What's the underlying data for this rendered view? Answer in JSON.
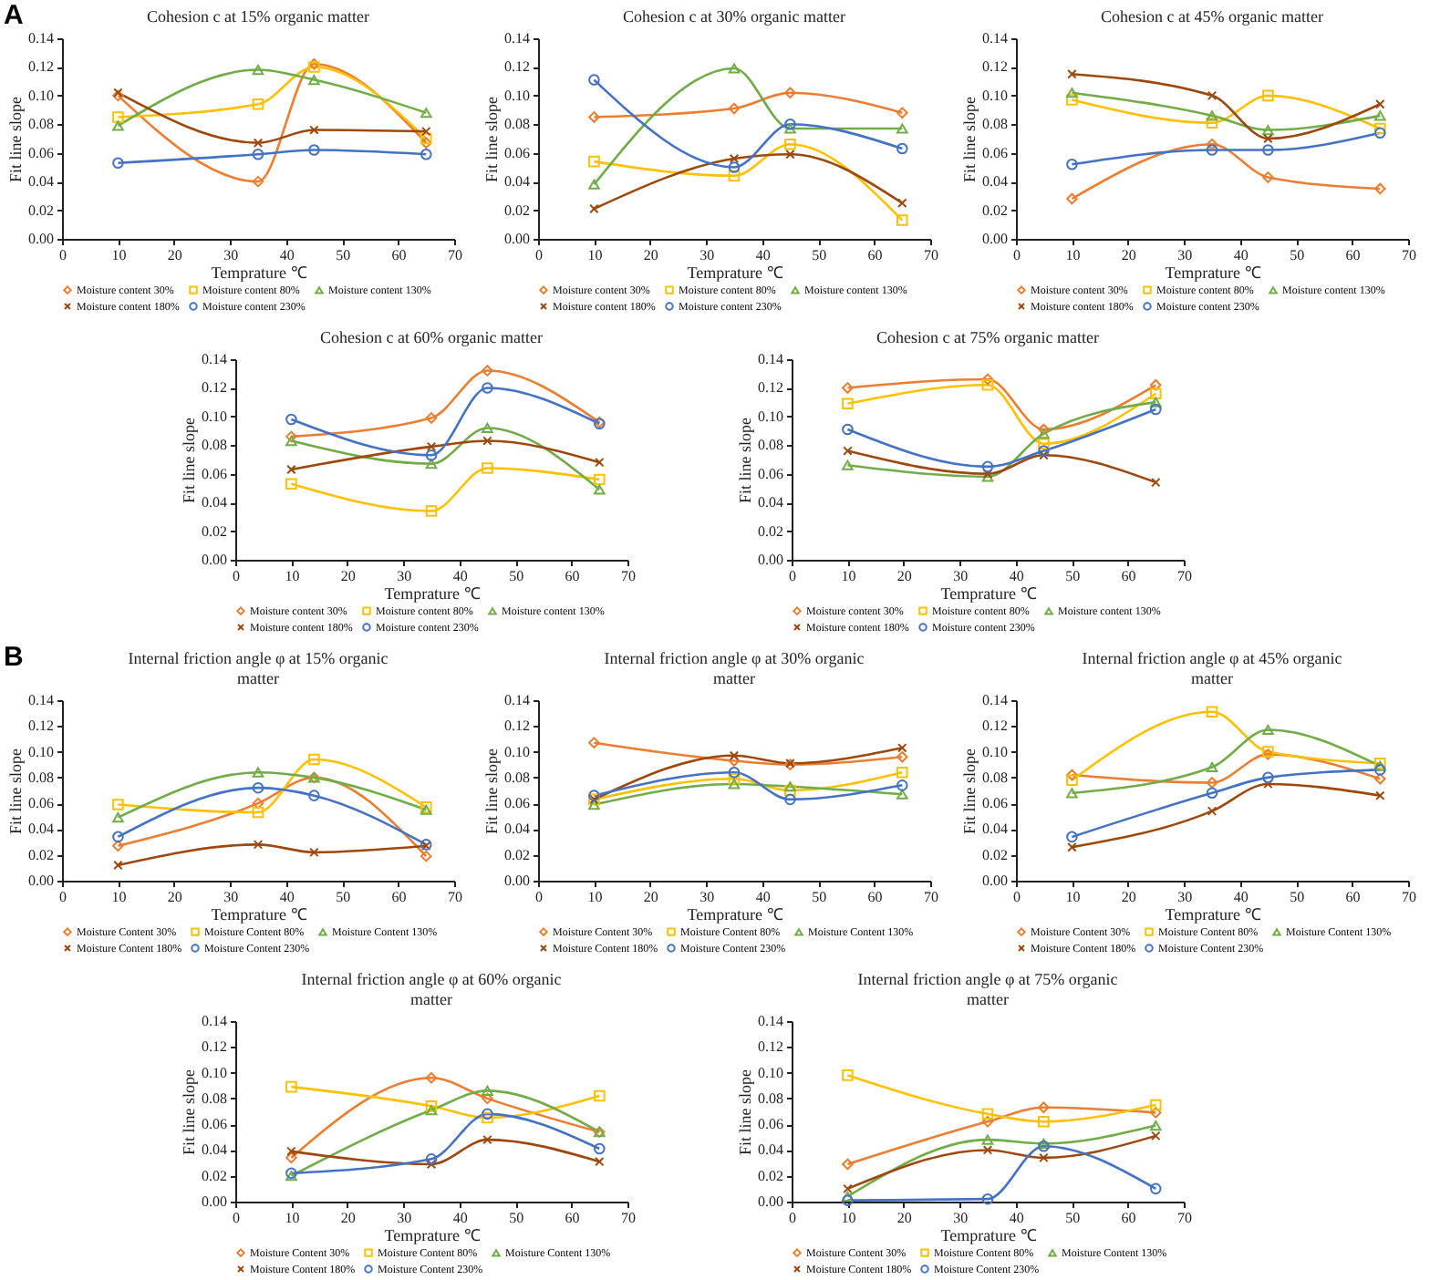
{
  "chart_data": [
    {
      "type": "line",
      "title": "Cohesion c at 15% organic matter",
      "xlabel": "Temprature ℃",
      "ylabel": "Fit line slope",
      "annotations": [
        "A"
      ],
      "legend": "bottom",
      "x": [
        10,
        35,
        45,
        65
      ],
      "xlim": [
        0,
        70
      ],
      "xticks": [
        0,
        10,
        20,
        30,
        40,
        50,
        60,
        70
      ],
      "ylim": [
        0,
        0.14
      ],
      "yticks": [
        {
          "value": 0,
          "label": "0.00"
        },
        {
          "value": 0.02,
          "label": "0.02"
        },
        {
          "value": 0.04,
          "label": "0.04"
        },
        {
          "value": 0.06,
          "label": "0.06"
        },
        {
          "value": 0.08,
          "label": "0.08"
        },
        {
          "value": 0.1,
          "label": "0.10"
        },
        {
          "value": 0.12,
          "label": "0.12"
        },
        {
          "value": 0.14,
          "label": "0.14"
        }
      ],
      "series": [
        {
          "name": "Moisture content 30%",
          "color": "#ed7d31",
          "marker": "diamond",
          "values": [
            0.1,
            0.04,
            0.122,
            0.067
          ]
        },
        {
          "name": "Moisture content 80%",
          "color": "#ffc000",
          "marker": "square",
          "values": [
            0.085,
            0.094,
            0.12,
            0.07
          ]
        },
        {
          "name": "Moisture content 130%",
          "color": "#70ad47",
          "marker": "triangle",
          "values": [
            0.079,
            0.118,
            0.111,
            0.088
          ]
        },
        {
          "name": "Moisture content 180%",
          "color": "#9e480e",
          "marker": "cross",
          "values": [
            0.102,
            0.067,
            0.076,
            0.075
          ]
        },
        {
          "name": "Moisture content 230%",
          "color": "#4472c4",
          "marker": "circle",
          "values": [
            0.053,
            0.059,
            0.062,
            0.059
          ]
        }
      ]
    },
    {
      "type": "line",
      "title": "Cohesion c at 30% organic matter",
      "xlabel": "Temprature ℃",
      "ylabel": "Fit line slope",
      "legend": "bottom",
      "x": [
        10,
        35,
        45,
        65
      ],
      "xlim": [
        0,
        70
      ],
      "xticks": [
        0,
        10,
        20,
        30,
        40,
        50,
        60,
        70
      ],
      "ylim": [
        0,
        0.14
      ],
      "yticks": [
        {
          "value": 0,
          "label": "0.00"
        },
        {
          "value": 0.02,
          "label": "0.02"
        },
        {
          "value": 0.04,
          "label": "0.04"
        },
        {
          "value": 0.06,
          "label": "0.06"
        },
        {
          "value": 0.08,
          "label": "0.08"
        },
        {
          "value": 0.1,
          "label": "0.10"
        },
        {
          "value": 0.12,
          "label": "0.12"
        },
        {
          "value": 0.14,
          "label": "0.14"
        }
      ],
      "series": [
        {
          "name": "Moisture content 30%",
          "color": "#ed7d31",
          "marker": "diamond",
          "values": [
            0.085,
            0.091,
            0.102,
            0.088
          ]
        },
        {
          "name": "Moisture content 80%",
          "color": "#ffc000",
          "marker": "square",
          "values": [
            0.054,
            0.044,
            0.066,
            0.013
          ]
        },
        {
          "name": "Moisture content 130%",
          "color": "#70ad47",
          "marker": "triangle",
          "values": [
            0.038,
            0.119,
            0.077,
            0.077
          ]
        },
        {
          "name": "Moisture content 180%",
          "color": "#9e480e",
          "marker": "cross",
          "values": [
            0.021,
            0.056,
            0.059,
            0.025
          ]
        },
        {
          "name": "Moisture content 230%",
          "color": "#4472c4",
          "marker": "circle",
          "values": [
            0.111,
            0.05,
            0.08,
            0.063
          ]
        }
      ]
    },
    {
      "type": "line",
      "title": "Cohesion c at 45% organic matter",
      "xlabel": "Temprature ℃",
      "ylabel": "Fit line slope",
      "legend": "bottom",
      "x": [
        10,
        35,
        45,
        65
      ],
      "xlim": [
        0,
        70
      ],
      "xticks": [
        0,
        10,
        20,
        30,
        40,
        50,
        60,
        70
      ],
      "ylim": [
        0,
        0.14
      ],
      "yticks": [
        {
          "value": 0,
          "label": "0.00"
        },
        {
          "value": 0.02,
          "label": "0.02"
        },
        {
          "value": 0.04,
          "label": "0.04"
        },
        {
          "value": 0.06,
          "label": "0.06"
        },
        {
          "value": 0.08,
          "label": "0.08"
        },
        {
          "value": 0.1,
          "label": "0.10"
        },
        {
          "value": 0.12,
          "label": "0.12"
        },
        {
          "value": 0.14,
          "label": "0.14"
        }
      ],
      "series": [
        {
          "name": "Moisture content 30%",
          "color": "#ed7d31",
          "marker": "diamond",
          "values": [
            0.028,
            0.066,
            0.043,
            0.035
          ]
        },
        {
          "name": "Moisture content 80%",
          "color": "#ffc000",
          "marker": "square",
          "values": [
            0.097,
            0.081,
            0.1,
            0.077
          ]
        },
        {
          "name": "Moisture content 130%",
          "color": "#70ad47",
          "marker": "triangle",
          "values": [
            0.102,
            0.086,
            0.076,
            0.086
          ]
        },
        {
          "name": "Moisture content 180%",
          "color": "#9e480e",
          "marker": "cross",
          "values": [
            0.115,
            0.1,
            0.07,
            0.094
          ]
        },
        {
          "name": "Moisture content 230%",
          "color": "#4472c4",
          "marker": "circle",
          "values": [
            0.052,
            0.062,
            0.062,
            0.074
          ]
        }
      ]
    },
    {
      "type": "line",
      "title": "Cohesion c at 60% organic matter",
      "xlabel": "Temprature ℃",
      "ylabel": "Fit line slope",
      "legend": "bottom",
      "x": [
        10,
        35,
        45,
        65
      ],
      "xlim": [
        0,
        70
      ],
      "xticks": [
        0,
        10,
        20,
        30,
        40,
        50,
        60,
        70
      ],
      "ylim": [
        0,
        0.14
      ],
      "yticks": [
        {
          "value": 0,
          "label": "0.00"
        },
        {
          "value": 0.02,
          "label": "0.02"
        },
        {
          "value": 0.04,
          "label": "0.04"
        },
        {
          "value": 0.06,
          "label": "0.06"
        },
        {
          "value": 0.08,
          "label": "0.08"
        },
        {
          "value": 0.1,
          "label": "0.10"
        },
        {
          "value": 0.12,
          "label": "0.12"
        },
        {
          "value": 0.14,
          "label": "0.14"
        }
      ],
      "series": [
        {
          "name": "Moisture content 30%",
          "color": "#ed7d31",
          "marker": "diamond",
          "values": [
            0.086,
            0.099,
            0.132,
            0.096
          ]
        },
        {
          "name": "Moisture content 80%",
          "color": "#ffc000",
          "marker": "square",
          "values": [
            0.053,
            0.034,
            0.064,
            0.056
          ]
        },
        {
          "name": "Moisture content 130%",
          "color": "#70ad47",
          "marker": "triangle",
          "values": [
            0.083,
            0.067,
            0.092,
            0.049
          ]
        },
        {
          "name": "Moisture content 180%",
          "color": "#9e480e",
          "marker": "cross",
          "values": [
            0.063,
            0.079,
            0.083,
            0.068
          ]
        },
        {
          "name": "Moisture content 230%",
          "color": "#4472c4",
          "marker": "circle",
          "values": [
            0.098,
            0.073,
            0.12,
            0.095
          ]
        }
      ]
    },
    {
      "type": "line",
      "title": "Cohesion c at 75% organic matter",
      "xlabel": "Temprature ℃",
      "ylabel": "Fit line slope",
      "legend": "bottom",
      "x": [
        10,
        35,
        45,
        65
      ],
      "xlim": [
        0,
        70
      ],
      "xticks": [
        0,
        10,
        20,
        30,
        40,
        50,
        60,
        70
      ],
      "ylim": [
        0,
        0.14
      ],
      "yticks": [
        {
          "value": 0,
          "label": "0.00"
        },
        {
          "value": 0.02,
          "label": "0.02"
        },
        {
          "value": 0.04,
          "label": "0.04"
        },
        {
          "value": 0.06,
          "label": "0.06"
        },
        {
          "value": 0.08,
          "label": "0.08"
        },
        {
          "value": 0.1,
          "label": "0.10"
        },
        {
          "value": 0.12,
          "label": "0.12"
        },
        {
          "value": 0.14,
          "label": "0.14"
        }
      ],
      "series": [
        {
          "name": "Moisture content 30%",
          "color": "#ed7d31",
          "marker": "diamond",
          "values": [
            0.12,
            0.126,
            0.091,
            0.122
          ]
        },
        {
          "name": "Moisture content 80%",
          "color": "#ffc000",
          "marker": "square",
          "values": [
            0.109,
            0.122,
            0.081,
            0.116
          ]
        },
        {
          "name": "Moisture content 130%",
          "color": "#70ad47",
          "marker": "triangle",
          "values": [
            0.066,
            0.058,
            0.088,
            0.11
          ]
        },
        {
          "name": "Moisture content 180%",
          "color": "#9e480e",
          "marker": "cross",
          "values": [
            0.076,
            0.06,
            0.073,
            0.054
          ]
        },
        {
          "name": "Moisture content 230%",
          "color": "#4472c4",
          "marker": "circle",
          "values": [
            0.091,
            0.065,
            0.076,
            0.105
          ]
        }
      ]
    },
    {
      "type": "line",
      "title": "Internal friction angle φ at 15% organic matter",
      "xlabel": "Temprature ℃",
      "ylabel": "Fit line slope",
      "annotations": [
        "B"
      ],
      "legend": "bottom",
      "x": [
        10,
        35,
        45,
        65
      ],
      "xlim": [
        0,
        70
      ],
      "xticks": [
        0,
        10,
        20,
        30,
        40,
        50,
        60,
        70
      ],
      "ylim": [
        0,
        0.14
      ],
      "yticks": [
        {
          "value": 0,
          "label": "0.00"
        },
        {
          "value": 0.02,
          "label": "0.02"
        },
        {
          "value": 0.04,
          "label": "0.04"
        },
        {
          "value": 0.06,
          "label": "0.06"
        },
        {
          "value": 0.08,
          "label": "0.08"
        },
        {
          "value": 0.1,
          "label": "0.10"
        },
        {
          "value": 0.12,
          "label": "0.12"
        },
        {
          "value": 0.14,
          "label": "0.14"
        }
      ],
      "series": [
        {
          "name": "Moisture Content 30%",
          "color": "#ed7d31",
          "marker": "diamond",
          "values": [
            0.027,
            0.06,
            0.08,
            0.019
          ]
        },
        {
          "name": "Moisture Content 80%",
          "color": "#ffc000",
          "marker": "square",
          "values": [
            0.059,
            0.053,
            0.094,
            0.057
          ]
        },
        {
          "name": "Moisture Content 130%",
          "color": "#70ad47",
          "marker": "triangle",
          "values": [
            0.049,
            0.084,
            0.08,
            0.055
          ]
        },
        {
          "name": "Moisture Content 180%",
          "color": "#9e480e",
          "marker": "cross",
          "values": [
            0.012,
            0.028,
            0.022,
            0.027
          ]
        },
        {
          "name": "Moisture Content 230%",
          "color": "#4472c4",
          "marker": "circle",
          "values": [
            0.034,
            0.072,
            0.066,
            0.028
          ]
        }
      ]
    },
    {
      "type": "line",
      "title": "Internal friction angle φ at 30% organic matter",
      "xlabel": "Temprature ℃",
      "ylabel": "Fit line slope",
      "legend": "bottom",
      "x": [
        10,
        35,
        45,
        65
      ],
      "xlim": [
        0,
        70
      ],
      "xticks": [
        0,
        10,
        20,
        30,
        40,
        50,
        60,
        70
      ],
      "ylim": [
        0,
        0.14
      ],
      "yticks": [
        {
          "value": 0,
          "label": "0.00"
        },
        {
          "value": 0.02,
          "label": "0.02"
        },
        {
          "value": 0.04,
          "label": "0.04"
        },
        {
          "value": 0.06,
          "label": "0.06"
        },
        {
          "value": 0.08,
          "label": "0.08"
        },
        {
          "value": 0.1,
          "label": "0.10"
        },
        {
          "value": 0.12,
          "label": "0.12"
        },
        {
          "value": 0.14,
          "label": "0.14"
        }
      ],
      "series": [
        {
          "name": "Moisture Content 30%",
          "color": "#ed7d31",
          "marker": "diamond",
          "values": [
            0.107,
            0.093,
            0.09,
            0.096
          ]
        },
        {
          "name": "Moisture Content 80%",
          "color": "#ffc000",
          "marker": "square",
          "values": [
            0.063,
            0.079,
            0.07,
            0.084
          ]
        },
        {
          "name": "Moisture Content 130%",
          "color": "#70ad47",
          "marker": "triangle",
          "values": [
            0.059,
            0.075,
            0.073,
            0.067
          ]
        },
        {
          "name": "Moisture Content 180%",
          "color": "#9e480e",
          "marker": "cross",
          "values": [
            0.063,
            0.097,
            0.091,
            0.103
          ]
        },
        {
          "name": "Moisture Content 230%",
          "color": "#4472c4",
          "marker": "circle",
          "values": [
            0.066,
            0.084,
            0.063,
            0.074
          ]
        }
      ]
    },
    {
      "type": "line",
      "title": "Internal friction angle φ at 45% organic matter",
      "xlabel": "Temprature ℃",
      "ylabel": "Fit line slope",
      "legend": "bottom",
      "x": [
        10,
        35,
        45,
        65
      ],
      "xlim": [
        0,
        70
      ],
      "xticks": [
        0,
        10,
        20,
        30,
        40,
        50,
        60,
        70
      ],
      "ylim": [
        0,
        0.14
      ],
      "yticks": [
        {
          "value": 0,
          "label": "0.00"
        },
        {
          "value": 0.02,
          "label": "0.02"
        },
        {
          "value": 0.04,
          "label": "0.04"
        },
        {
          "value": 0.06,
          "label": "0.06"
        },
        {
          "value": 0.08,
          "label": "0.08"
        },
        {
          "value": 0.1,
          "label": "0.10"
        },
        {
          "value": 0.12,
          "label": "0.12"
        },
        {
          "value": 0.14,
          "label": "0.14"
        }
      ],
      "series": [
        {
          "name": "Moisture Content 30%",
          "color": "#ed7d31",
          "marker": "diamond",
          "values": [
            0.082,
            0.076,
            0.098,
            0.079
          ]
        },
        {
          "name": "Moisture Content 80%",
          "color": "#ffc000",
          "marker": "square",
          "values": [
            0.078,
            0.131,
            0.1,
            0.091
          ]
        },
        {
          "name": "Moisture Content 130%",
          "color": "#70ad47",
          "marker": "triangle",
          "values": [
            0.068,
            0.088,
            0.117,
            0.089
          ]
        },
        {
          "name": "Moisture Content 180%",
          "color": "#9e480e",
          "marker": "cross",
          "values": [
            0.026,
            0.054,
            0.075,
            0.066
          ]
        },
        {
          "name": "Moisture Content 230%",
          "color": "#4472c4",
          "marker": "circle",
          "values": [
            0.034,
            0.068,
            0.08,
            0.086
          ]
        }
      ]
    },
    {
      "type": "line",
      "title": "Internal friction angle φ at 60% organic matter",
      "xlabel": "Temprature ℃",
      "ylabel": "Fit line slope",
      "legend": "bottom",
      "x": [
        10,
        35,
        45,
        65
      ],
      "xlim": [
        0,
        70
      ],
      "xticks": [
        0,
        10,
        20,
        30,
        40,
        50,
        60,
        70
      ],
      "ylim": [
        0,
        0.14
      ],
      "yticks": [
        {
          "value": 0,
          "label": "0.00"
        },
        {
          "value": 0.02,
          "label": "0.02"
        },
        {
          "value": 0.04,
          "label": "0.04"
        },
        {
          "value": 0.06,
          "label": "0.06"
        },
        {
          "value": 0.08,
          "label": "0.08"
        },
        {
          "value": 0.1,
          "label": "0.10"
        },
        {
          "value": 0.12,
          "label": "0.12"
        },
        {
          "value": 0.14,
          "label": "0.14"
        }
      ],
      "series": [
        {
          "name": "Moisture Content 30%",
          "color": "#ed7d31",
          "marker": "diamond",
          "values": [
            0.034,
            0.096,
            0.08,
            0.054
          ]
        },
        {
          "name": "Moisture Content 80%",
          "color": "#ffc000",
          "marker": "square",
          "values": [
            0.089,
            0.074,
            0.065,
            0.082
          ]
        },
        {
          "name": "Moisture Content 130%",
          "color": "#70ad47",
          "marker": "triangle",
          "values": [
            0.02,
            0.071,
            0.086,
            0.054
          ]
        },
        {
          "name": "Moisture Content 180%",
          "color": "#9e480e",
          "marker": "cross",
          "values": [
            0.039,
            0.029,
            0.048,
            0.031
          ]
        },
        {
          "name": "Moisture Content 230%",
          "color": "#4472c4",
          "marker": "circle",
          "values": [
            0.022,
            0.033,
            0.068,
            0.041
          ]
        }
      ]
    },
    {
      "type": "line",
      "title": "Internal friction angle φ at 75% organic matter",
      "xlabel": "Temprature ℃",
      "ylabel": "Fit line slope",
      "legend": "bottom",
      "x": [
        10,
        35,
        45,
        65
      ],
      "xlim": [
        0,
        70
      ],
      "xticks": [
        0,
        10,
        20,
        30,
        40,
        50,
        60,
        70
      ],
      "ylim": [
        0,
        0.14
      ],
      "yticks": [
        {
          "value": 0,
          "label": "0.00"
        },
        {
          "value": 0.02,
          "label": "0.02"
        },
        {
          "value": 0.04,
          "label": "0.04"
        },
        {
          "value": 0.06,
          "label": "0.06"
        },
        {
          "value": 0.08,
          "label": "0.08"
        },
        {
          "value": 0.1,
          "label": "0.10"
        },
        {
          "value": 0.12,
          "label": "0.12"
        },
        {
          "value": 0.14,
          "label": "0.14"
        }
      ],
      "series": [
        {
          "name": "Moisture Content 30%",
          "color": "#ed7d31",
          "marker": "diamond",
          "values": [
            0.029,
            0.062,
            0.073,
            0.069
          ]
        },
        {
          "name": "Moisture Content 80%",
          "color": "#ffc000",
          "marker": "square",
          "values": [
            0.098,
            0.068,
            0.062,
            0.075
          ]
        },
        {
          "name": "Moisture Content 130%",
          "color": "#70ad47",
          "marker": "triangle",
          "values": [
            0.004,
            0.048,
            0.045,
            0.059
          ]
        },
        {
          "name": "Moisture Content 180%",
          "color": "#9e480e",
          "marker": "cross",
          "values": [
            0.01,
            0.04,
            0.034,
            0.051
          ]
        },
        {
          "name": "Moisture Content 230%",
          "color": "#4472c4",
          "marker": "circle",
          "values": [
            0.001,
            0.002,
            0.043,
            0.01
          ]
        }
      ]
    }
  ]
}
